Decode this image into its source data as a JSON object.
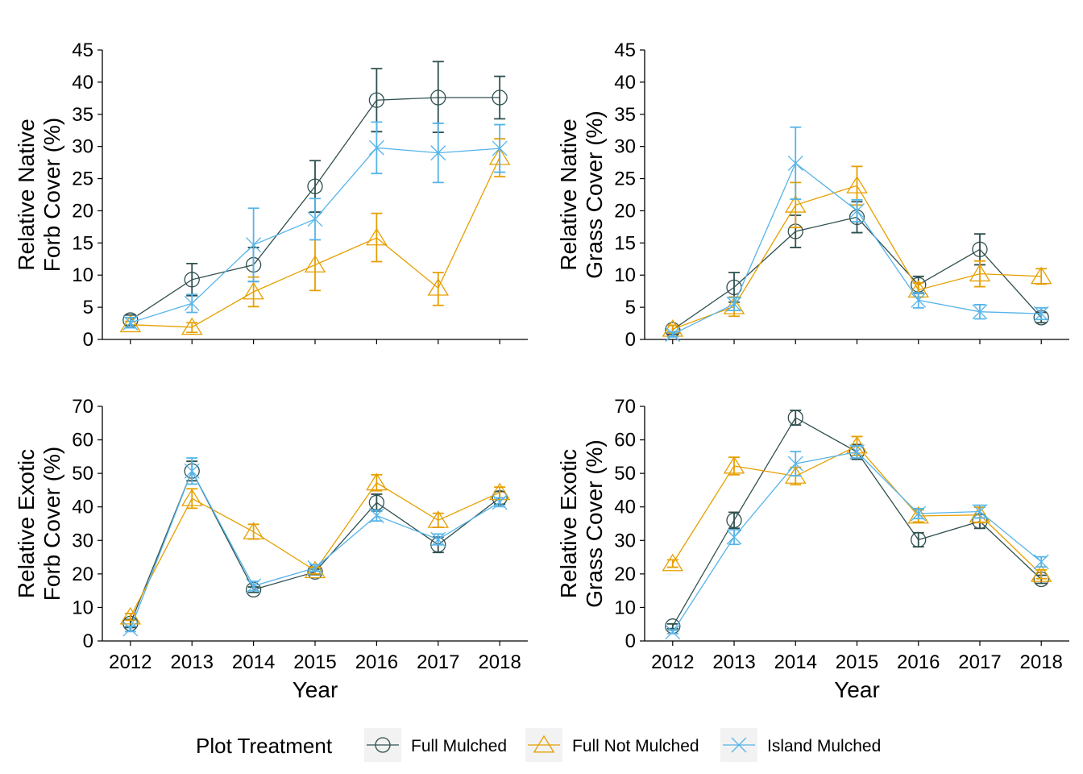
{
  "legend": {
    "title": "Plot Treatment",
    "position": "bottom",
    "items": [
      {
        "name": "Full Mulched",
        "color": "#2F4F4F",
        "marker": "circle"
      },
      {
        "name": "Full Not Mulched",
        "color": "#E69F00",
        "marker": "triangle"
      },
      {
        "name": "Island Mulched",
        "color": "#56B4E9",
        "marker": "x"
      }
    ]
  },
  "chart_data": [
    {
      "type": "line",
      "ylabel": [
        "Relative Native",
        "Forb Cover (%)"
      ],
      "xlabel": "",
      "x": [
        "2012",
        "2013",
        "2014",
        "2015",
        "2016",
        "2017",
        "2018"
      ],
      "ylim": [
        0,
        45
      ],
      "yticks": [
        0,
        5,
        10,
        15,
        20,
        25,
        30,
        35,
        40,
        45
      ],
      "show_x_tick_labels": false,
      "series": [
        {
          "name": "Full Mulched",
          "values": [
            3.0,
            9.3,
            11.6,
            23.8,
            37.2,
            37.6,
            37.6
          ],
          "lower": [
            2.2,
            6.8,
            9.0,
            19.8,
            32.3,
            32.2,
            34.3
          ],
          "upper": [
            3.8,
            11.8,
            14.3,
            27.8,
            42.1,
            43.2,
            40.9
          ]
        },
        {
          "name": "Full Not Mulched",
          "values": [
            2.3,
            1.9,
            7.4,
            11.6,
            15.8,
            8.0,
            28.3
          ],
          "lower": [
            1.8,
            1.1,
            5.1,
            7.6,
            12.1,
            5.3,
            25.3
          ],
          "upper": [
            2.8,
            2.6,
            9.7,
            15.5,
            19.6,
            10.4,
            31.2
          ]
        },
        {
          "name": "Island Mulched",
          "values": [
            2.6,
            5.6,
            14.7,
            18.7,
            29.8,
            29.0,
            29.7
          ],
          "lower": [
            1.8,
            4.2,
            9.0,
            15.5,
            25.8,
            24.4,
            26.0
          ],
          "upper": [
            3.4,
            7.0,
            20.4,
            21.9,
            33.8,
            33.6,
            33.4
          ]
        }
      ]
    },
    {
      "type": "line",
      "ylabel": [
        "Relative Native",
        "Grass Cover (%)"
      ],
      "xlabel": "",
      "x": [
        "2012",
        "2013",
        "2014",
        "2015",
        "2016",
        "2017",
        "2018"
      ],
      "ylim": [
        0,
        45
      ],
      "yticks": [
        0,
        5,
        10,
        15,
        20,
        25,
        30,
        35,
        40,
        45
      ],
      "show_x_tick_labels": false,
      "series": [
        {
          "name": "Full Mulched",
          "values": [
            1.5,
            8.1,
            16.8,
            19.0,
            8.5,
            14.0,
            3.4
          ],
          "lower": [
            0.8,
            5.8,
            14.3,
            16.6,
            7.2,
            11.6,
            2.6
          ],
          "upper": [
            2.2,
            10.4,
            19.3,
            21.4,
            9.8,
            16.4,
            4.2
          ]
        },
        {
          "name": "Full Not Mulched",
          "values": [
            1.6,
            5.1,
            20.9,
            23.9,
            7.7,
            10.2,
            9.8
          ],
          "lower": [
            1.0,
            3.6,
            17.4,
            20.9,
            6.6,
            8.2,
            8.6
          ],
          "upper": [
            2.2,
            6.6,
            24.4,
            26.9,
            8.8,
            12.2,
            11.0
          ]
        },
        {
          "name": "Island Mulched",
          "values": [
            0.8,
            5.5,
            27.4,
            20.0,
            6.1,
            4.3,
            4.0
          ],
          "lower": [
            0.4,
            4.5,
            21.8,
            18.3,
            4.9,
            3.2,
            3.1
          ],
          "upper": [
            1.2,
            6.5,
            33.0,
            21.7,
            7.3,
            5.4,
            4.9
          ]
        }
      ]
    },
    {
      "type": "line",
      "ylabel": [
        "Relative Exotic",
        "Forb Cover (%)"
      ],
      "xlabel": "Year",
      "x": [
        "2012",
        "2013",
        "2014",
        "2015",
        "2016",
        "2017",
        "2018"
      ],
      "ylim": [
        0,
        70
      ],
      "yticks": [
        0,
        10,
        20,
        30,
        40,
        50,
        60,
        70
      ],
      "show_x_tick_labels": true,
      "series": [
        {
          "name": "Full Mulched",
          "values": [
            5.2,
            50.7,
            15.3,
            20.6,
            41.3,
            28.7,
            42.7
          ],
          "lower": [
            4.0,
            47.8,
            14.5,
            19.8,
            38.8,
            26.4,
            40.8
          ],
          "upper": [
            6.4,
            53.6,
            16.1,
            21.4,
            43.8,
            31.0,
            44.6
          ]
        },
        {
          "name": "Full Not Mulched",
          "values": [
            7.2,
            42.5,
            32.6,
            21.0,
            47.2,
            36.0,
            44.3
          ],
          "lower": [
            6.2,
            39.6,
            30.4,
            20.0,
            44.8,
            33.9,
            42.7
          ],
          "upper": [
            8.2,
            45.4,
            34.8,
            22.0,
            49.6,
            38.1,
            45.9
          ]
        },
        {
          "name": "Island Mulched",
          "values": [
            3.6,
            50.7,
            16.4,
            21.8,
            37.4,
            30.3,
            41.4
          ],
          "lower": [
            2.8,
            46.8,
            15.0,
            20.8,
            35.8,
            28.7,
            40.1
          ],
          "upper": [
            4.4,
            54.6,
            17.8,
            22.8,
            39.0,
            31.9,
            42.7
          ]
        }
      ]
    },
    {
      "type": "line",
      "ylabel": [
        "Relative Exotic",
        "Grass Cover (%)"
      ],
      "xlabel": "Year",
      "x": [
        "2012",
        "2013",
        "2014",
        "2015",
        "2016",
        "2017",
        "2018"
      ],
      "ylim": [
        0,
        70
      ],
      "yticks": [
        0,
        10,
        20,
        30,
        40,
        50,
        60,
        70
      ],
      "show_x_tick_labels": true,
      "series": [
        {
          "name": "Full Mulched",
          "values": [
            4.4,
            36.0,
            66.6,
            56.4,
            30.2,
            35.7,
            18.4
          ],
          "lower": [
            3.7,
            33.6,
            64.4,
            54.2,
            28.1,
            33.6,
            17.2
          ],
          "upper": [
            5.1,
            38.4,
            68.8,
            58.6,
            32.3,
            37.8,
            19.6
          ]
        },
        {
          "name": "Full Not Mulched",
          "values": [
            23.1,
            52.2,
            49.2,
            58.2,
            37.3,
            37.6,
            19.9
          ],
          "lower": [
            22.0,
            49.6,
            46.6,
            55.4,
            35.5,
            35.3,
            18.6
          ],
          "upper": [
            24.2,
            54.8,
            51.8,
            61.0,
            39.1,
            39.9,
            21.2
          ]
        },
        {
          "name": "Island Mulched",
          "values": [
            2.7,
            31.0,
            52.9,
            56.4,
            38.0,
            38.6,
            23.6
          ],
          "lower": [
            2.2,
            28.8,
            49.3,
            54.6,
            36.5,
            36.7,
            22.1
          ],
          "upper": [
            3.2,
            33.2,
            56.5,
            58.2,
            39.5,
            40.5,
            25.1
          ]
        }
      ]
    }
  ]
}
